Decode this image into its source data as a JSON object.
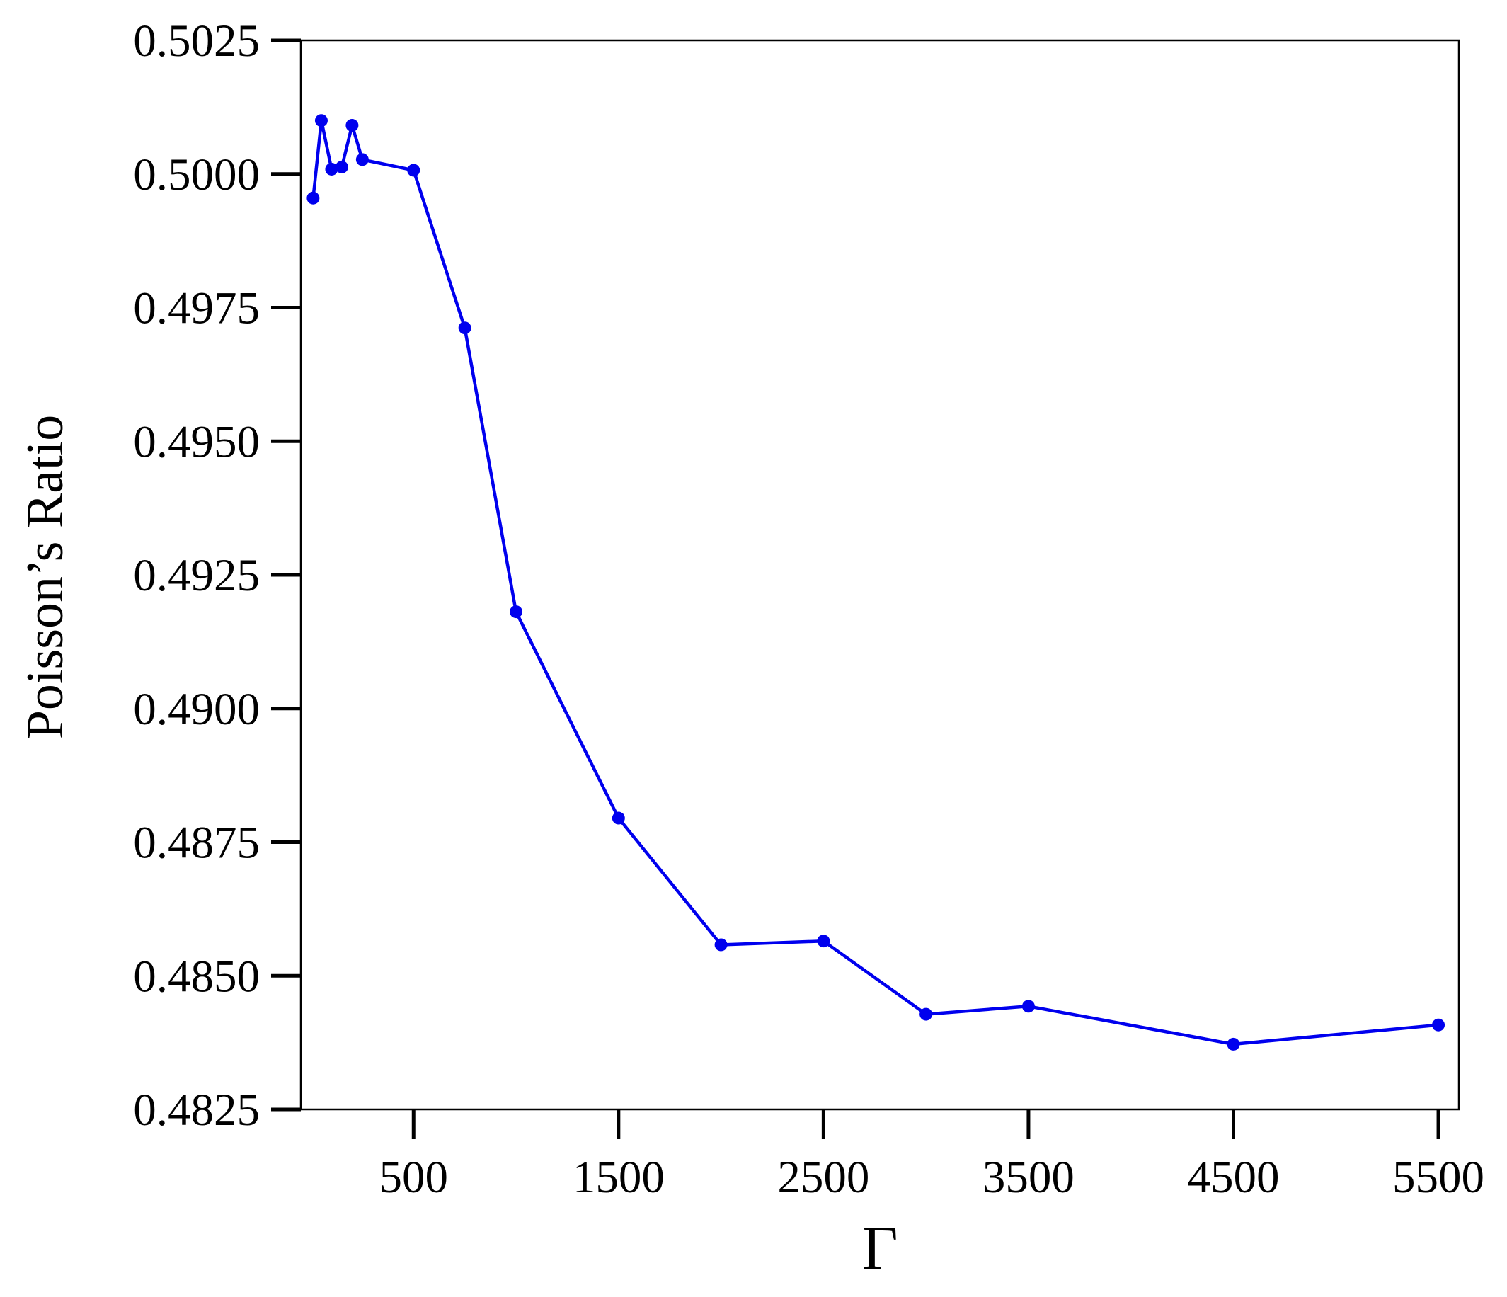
{
  "chart_data": {
    "type": "line",
    "xlabel": "Γ",
    "ylabel": "Poisson’s Ratio",
    "xlim": [
      -50,
      5600
    ],
    "ylim": [
      0.4825,
      0.5025
    ],
    "xticks": [
      500,
      1500,
      2500,
      3500,
      4500,
      5500
    ],
    "xtick_labels": [
      "500",
      "1500",
      "2500",
      "3500",
      "4500",
      "5500"
    ],
    "yticks": [
      0.4825,
      0.485,
      0.4875,
      0.49,
      0.4925,
      0.495,
      0.4975,
      0.5,
      0.5025
    ],
    "ytick_labels": [
      "0.4825",
      "0.4850",
      "0.4875",
      "0.4900",
      "0.4925",
      "0.4950",
      "0.4975",
      "0.5000",
      "0.5025"
    ],
    "grid": false,
    "legend": "none",
    "series": [
      {
        "color": "#0000ee",
        "marker": "circle",
        "x": [
          10,
          50,
          100,
          150,
          200,
          250,
          500,
          750,
          1000,
          1500,
          2000,
          2500,
          3000,
          3500,
          4500,
          5500
        ],
        "y": [
          0.49955,
          0.501,
          0.50009,
          0.50013,
          0.50091,
          0.50027,
          0.50007,
          0.49712,
          0.49181,
          0.48795,
          0.48558,
          0.48565,
          0.48428,
          0.48443,
          0.48372,
          0.48408
        ]
      }
    ]
  }
}
